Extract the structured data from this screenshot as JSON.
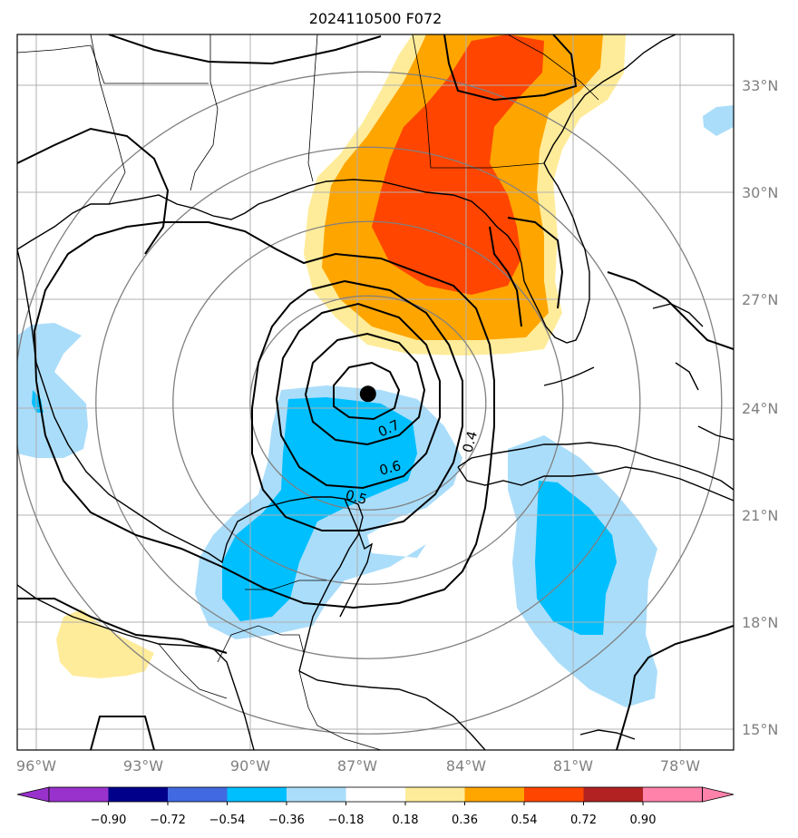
{
  "title": "2024110500 F072",
  "map": {
    "lon_range": [
      -96.0,
      -76.0
    ],
    "lat_range": [
      14.5,
      34.5
    ],
    "lon_ticks": [
      "96°W",
      "93°W",
      "90°W",
      "87°W",
      "84°W",
      "81°W",
      "78°W"
    ],
    "lat_ticks": [
      "15°N",
      "18°N",
      "21°N",
      "24°N",
      "27°N",
      "30°N",
      "33°N"
    ],
    "storm_center": {
      "lon": -86.7,
      "lat": 24.4
    },
    "contour_labels": [
      "0.7",
      "0.6",
      "0.5",
      "0.4"
    ],
    "colors": {
      "pos_low": "#ffec9a",
      "pos_mid": "#ffa500",
      "pos_high": "#ff4500",
      "neg_low": "#aaddfa",
      "neg_mid": "#00bfff",
      "grid": "#b0b0b0",
      "range_ring": "#808080",
      "coast": "#000000"
    }
  },
  "colorbar": {
    "ticks": [
      "−0.90",
      "−0.72",
      "−0.54",
      "−0.36",
      "−0.18",
      "0.18",
      "0.36",
      "0.54",
      "0.72",
      "0.90"
    ],
    "colors": [
      "#9932cc",
      "#00008b",
      "#4169e1",
      "#00bfff",
      "#aaddfa",
      "#ffffff",
      "#ffec9a",
      "#ffa500",
      "#ff4500",
      "#b22222",
      "#ff82ab"
    ]
  }
}
